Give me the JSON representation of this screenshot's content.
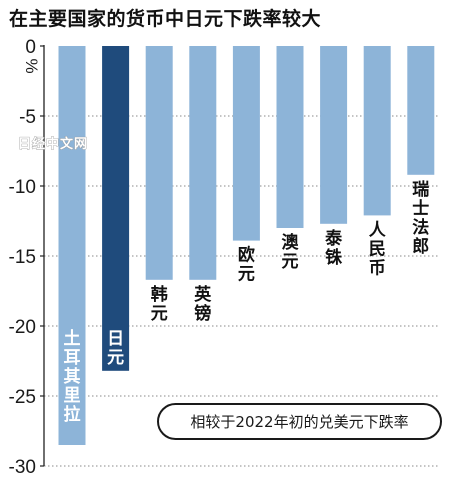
{
  "chart_data": {
    "type": "bar",
    "title": "在主要国家的货币中日元下跌率较大",
    "unit": "%",
    "note": "相较于2022年初的兑美元下跌率",
    "watermark": "日经中文网",
    "categories": [
      "土耳其里拉",
      "日元",
      "韩元",
      "英镑",
      "欧元",
      "澳元",
      "泰铢",
      "人民币",
      "瑞士法郎"
    ],
    "values": [
      -28.5,
      -23.2,
      -16.7,
      -16.7,
      -13.9,
      -13.0,
      -12.7,
      -12.1,
      -9.2
    ],
    "highlight": "日元",
    "ylim": [
      -30,
      0
    ],
    "yticks": [
      0,
      -5,
      -10,
      -15,
      -20,
      -25,
      -30
    ],
    "ytick_labels": [
      "0",
      "-5",
      "-10",
      "-15",
      "-20",
      "-25",
      "-30"
    ],
    "grid": "dotted",
    "legend": "none",
    "colors": {
      "bar": "#8db4d8",
      "highlight_bar": "#1f4b7c",
      "grid": "#8a8a8a",
      "axis": "#222222",
      "label_on_bar": "#ffffff",
      "label_below_bar": "#111111"
    }
  }
}
